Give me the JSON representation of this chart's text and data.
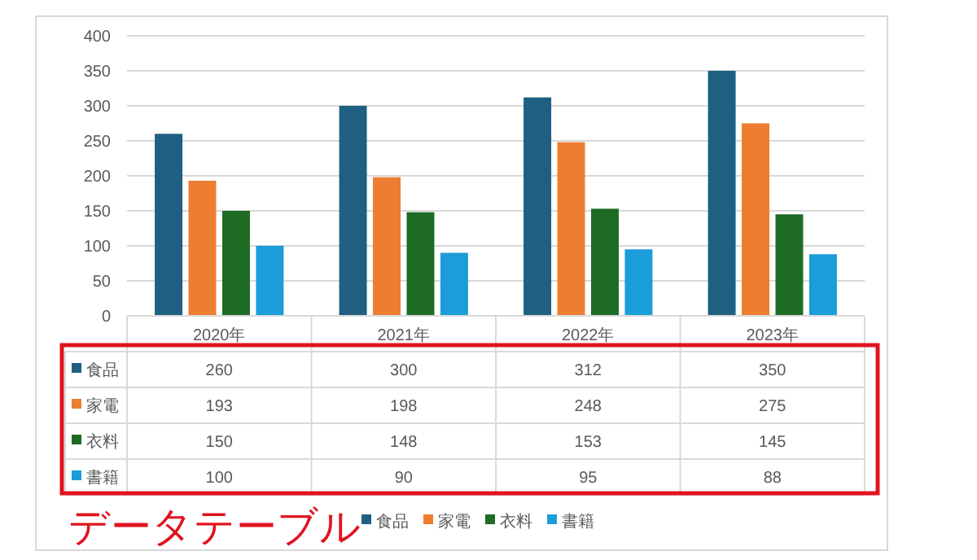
{
  "chart_data": {
    "type": "bar",
    "categories": [
      "2020年",
      "2021年",
      "2022年",
      "2023年"
    ],
    "series": [
      {
        "name": "食品",
        "color": "#1f5f82",
        "values": [
          260,
          300,
          312,
          350
        ]
      },
      {
        "name": "家電",
        "color": "#ed7d31",
        "values": [
          193,
          198,
          248,
          275
        ]
      },
      {
        "name": "衣料",
        "color": "#1e6b24",
        "values": [
          150,
          148,
          153,
          145
        ]
      },
      {
        "name": "書籍",
        "color": "#1a9dd9",
        "values": [
          100,
          90,
          95,
          88
        ]
      }
    ],
    "ylim": [
      0,
      400
    ],
    "yticks": [
      0,
      50,
      100,
      150,
      200,
      250,
      300,
      350,
      400
    ],
    "grid": "y",
    "legend": "bottom",
    "data_labels": true,
    "annotations": [
      "データテーブル"
    ]
  }
}
